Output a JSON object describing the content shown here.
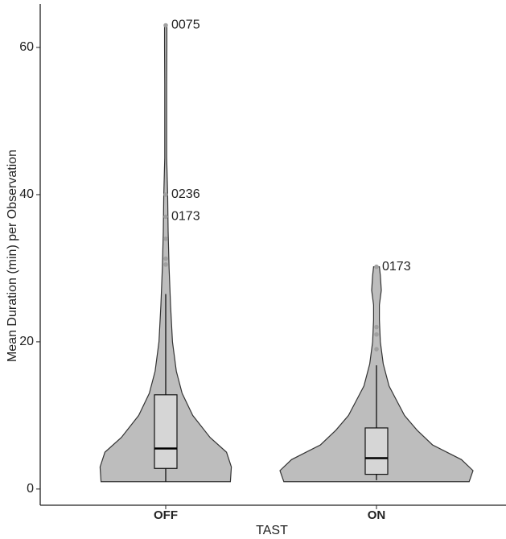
{
  "chart_data": {
    "type": "violin",
    "y_label": "Mean Duration (min) per Observation",
    "x_label": "TAST",
    "categories": [
      "OFF",
      "ON"
    ],
    "ylim": [
      -2.2,
      65.9
    ],
    "yticks": [
      0,
      20,
      40,
      60
    ],
    "grid": false,
    "violin_color": "#bdbdbd",
    "box_color": "#d6d6d6",
    "point_color": "#a0a0a0",
    "groups": [
      {
        "box": {
          "lower": 1,
          "q1": 2.8,
          "median": 5.5,
          "q3": 12.8,
          "upper": 26.5
        },
        "outliers": [
          30.5,
          31.3,
          34,
          37,
          40,
          63
        ],
        "outlier_labels": [
          {
            "value": 63,
            "label": "0075"
          },
          {
            "value": 40,
            "label": "0236"
          },
          {
            "value": 37,
            "label": "0173"
          }
        ],
        "density": {
          "y": [
            1,
            3,
            5,
            7,
            10,
            13,
            16,
            20,
            25,
            30,
            35,
            40,
            45,
            50,
            55,
            60,
            63
          ],
          "width": [
            0.67,
            0.68,
            0.63,
            0.46,
            0.28,
            0.17,
            0.11,
            0.07,
            0.05,
            0.035,
            0.025,
            0.02,
            0.01,
            0.01,
            0.01,
            0.012,
            0.012
          ]
        }
      },
      {
        "box": {
          "lower": 1.2,
          "q1": 2,
          "median": 4.2,
          "q3": 8.3,
          "upper": 16.8
        },
        "outliers": [
          19,
          21,
          22,
          30.2
        ],
        "outlier_labels": [
          {
            "value": 30.2,
            "label": "0173"
          }
        ],
        "density": {
          "y": [
            1,
            2.5,
            4,
            6,
            8,
            10,
            12,
            14,
            17,
            20,
            23,
            25,
            27,
            29,
            30.2
          ],
          "width": [
            0.96,
            1,
            0.88,
            0.58,
            0.42,
            0.29,
            0.21,
            0.13,
            0.07,
            0.04,
            0.03,
            0.03,
            0.05,
            0.04,
            0.03
          ]
        }
      }
    ]
  }
}
